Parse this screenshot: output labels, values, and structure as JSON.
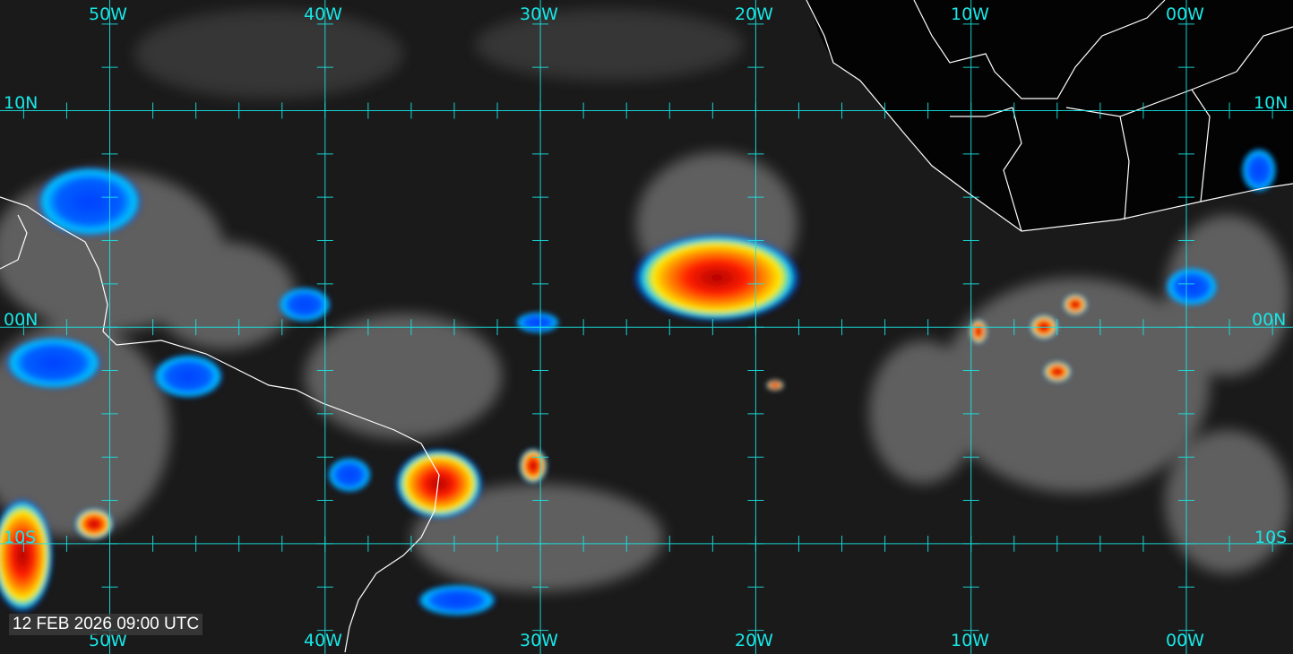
{
  "map": {
    "longitude_labels": [
      "50W",
      "40W",
      "30W",
      "20W",
      "10W",
      "00W"
    ],
    "latitude_labels": [
      "10N",
      "00N",
      "10S"
    ],
    "timestamp": "12 FEB 2026 09:00 UTC",
    "grid_color": "#19e6e6",
    "coastline_color": "#ffffff",
    "colorscale": [
      "#0000ff",
      "#00ccff",
      "#ffff00",
      "#ff8800",
      "#ff0000",
      "#990000"
    ]
  }
}
